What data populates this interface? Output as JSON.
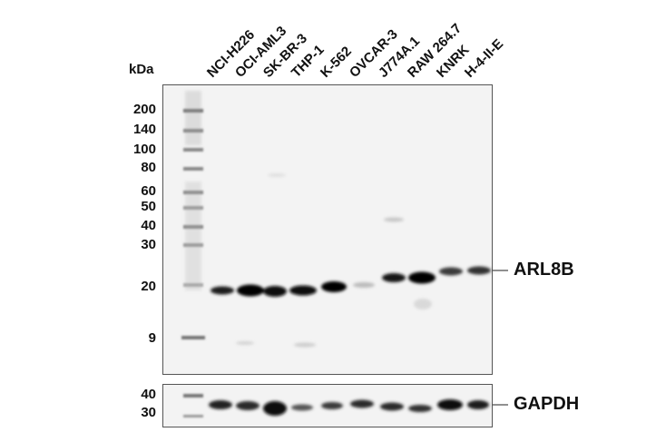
{
  "kda_label": "kDa",
  "lanes": [
    "NCI-H226",
    "OCI-AML3",
    "SK-BR-3",
    "THP-1",
    "K-562",
    "OVCAR-3",
    "J774A.1",
    "RAW 264.7",
    "KNRK",
    "H-4-II-E"
  ],
  "main_panel": {
    "markers": [
      "200",
      "140",
      "100",
      "80",
      "60",
      "50",
      "40",
      "30",
      "20",
      "9"
    ],
    "target_label": "ARL8B"
  },
  "loading_panel": {
    "markers": [
      "40",
      "30"
    ],
    "target_label": "GAPDH"
  }
}
